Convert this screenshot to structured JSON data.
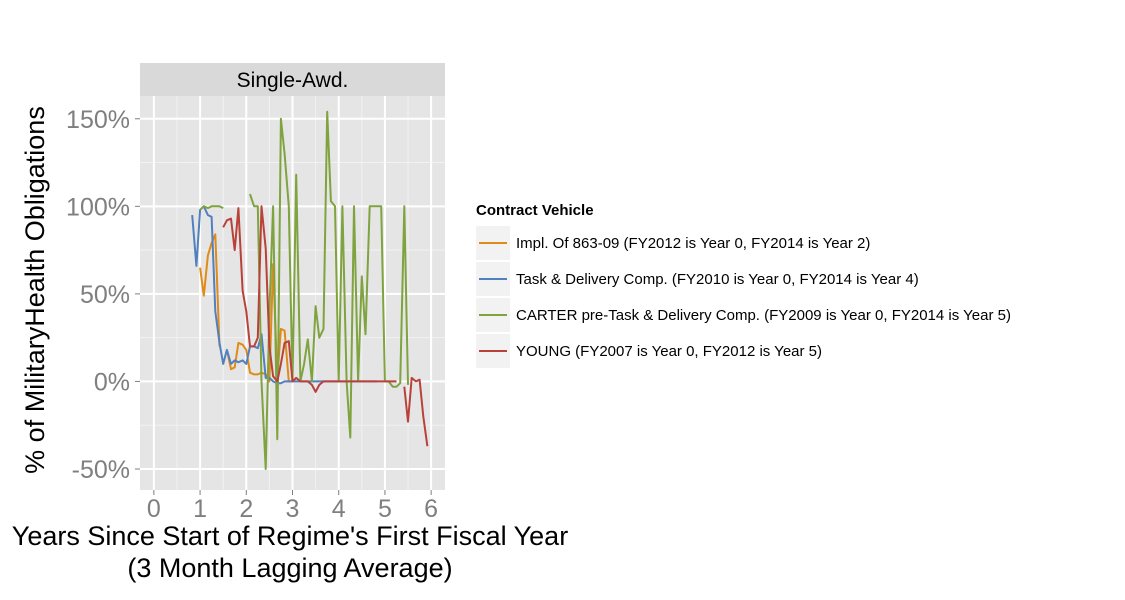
{
  "chart_data": {
    "type": "line",
    "facet_label": "Single-Awd.",
    "xlabel": "Years Since Start of Regime's First Fiscal Year\n(3 Month Lagging Average)",
    "ylabel": "% of MilitaryHealth Obligations",
    "xlim": [
      -0.3,
      6.3
    ],
    "ylim": [
      -0.62,
      1.63
    ],
    "x_ticks": [
      0,
      1,
      2,
      3,
      4,
      5,
      6
    ],
    "y_ticks": [
      -0.5,
      0,
      0.5,
      1.0,
      1.5
    ],
    "y_tick_labels": [
      "-50%",
      "0%",
      "50%",
      "100%",
      "150%"
    ],
    "grid": true,
    "legend_position": "right",
    "legend_title": "Contract Vehicle",
    "series": [
      {
        "name": "Impl. Of 863-09 (FY2012 is Year 0, FY2014 is Year 2)",
        "color": "#e08a17",
        "x": [
          1.0,
          1.08,
          1.17,
          1.25,
          1.33,
          1.42,
          1.5,
          1.58,
          1.67,
          1.75,
          1.83,
          1.92,
          2.0,
          2.08,
          2.17,
          2.25,
          2.33,
          2.42,
          2.5,
          2.58,
          2.67,
          2.75,
          2.83,
          2.92,
          3.0
        ],
        "y": [
          0.65,
          0.49,
          0.72,
          0.79,
          0.84,
          0.2,
          null,
          0.18,
          0.07,
          0.08,
          0.22,
          0.21,
          0.18,
          0.05,
          0.04,
          0.04,
          0.05,
          0.04,
          0.0,
          0.67,
          0.02,
          0.3,
          0.29,
          0.0,
          0.0
        ]
      },
      {
        "name": "Task & Delivery Comp. (FY2010 is Year 0, FY2014 is Year 4)",
        "color": "#5080bf",
        "x": [
          0.83,
          0.92,
          1.0,
          1.08,
          1.17,
          1.25,
          1.33,
          1.42,
          1.5,
          1.58,
          1.67,
          1.75,
          1.83,
          1.92,
          2.0,
          2.08,
          2.17,
          2.25,
          2.33,
          2.42,
          2.5,
          2.58,
          2.67,
          2.75,
          2.83,
          2.92,
          3.0,
          3.17,
          3.33,
          3.5,
          3.67,
          3.83,
          4.0,
          4.17,
          4.33,
          4.5,
          4.67,
          4.83
        ],
        "y": [
          0.95,
          0.66,
          0.98,
          1.0,
          0.95,
          0.94,
          0.4,
          0.22,
          0.1,
          0.18,
          0.1,
          0.12,
          0.11,
          0.12,
          0.1,
          0.2,
          0.2,
          0.19,
          0.27,
          0.02,
          0.02,
          0.0,
          -0.01,
          -0.01,
          0.0,
          0.0,
          0.0,
          0.0,
          0.0,
          0.0,
          0.0,
          0.0,
          0.0,
          0.0,
          0.0,
          0.0,
          0.0,
          0.0
        ]
      },
      {
        "name": "CARTER pre-Task & Delivery Comp. (FY2009 is Year 0, FY2014 is Year 5)",
        "color": "#7fa33f",
        "x": [
          1.0,
          1.08,
          1.17,
          1.25,
          1.33,
          1.42,
          1.5,
          null,
          2.08,
          2.17,
          2.25,
          2.33,
          2.42,
          2.5,
          2.58,
          2.67,
          2.75,
          2.83,
          2.92,
          3.0,
          3.08,
          3.17,
          3.25,
          3.33,
          3.42,
          3.5,
          3.58,
          3.67,
          3.75,
          3.83,
          3.92,
          4.0,
          4.08,
          4.17,
          4.25,
          4.33,
          4.42,
          4.5,
          4.58,
          4.67,
          4.75,
          4.83,
          4.92,
          5.0,
          5.08,
          5.17,
          5.25,
          5.33,
          5.42,
          5.5
        ],
        "y": [
          0.98,
          1.0,
          0.99,
          1.0,
          1.0,
          1.0,
          0.99,
          null,
          1.07,
          1.0,
          1.0,
          0.0,
          -0.5,
          0.4,
          1.0,
          -0.33,
          1.5,
          1.3,
          1.0,
          0.0,
          1.18,
          0.0,
          0.1,
          0.24,
          0.0,
          0.43,
          0.25,
          0.3,
          1.54,
          1.03,
          1.0,
          0.0,
          1.0,
          0.0,
          -0.32,
          1.0,
          0.0,
          0.6,
          0.27,
          1.0,
          1.0,
          1.0,
          1.0,
          0.0,
          0.0,
          -0.03,
          -0.03,
          -0.01,
          1.0,
          -0.02
        ]
      },
      {
        "name": "YOUNG (FY2007 is Year 0, FY2012 is Year 5)",
        "color": "#b9413a",
        "x": [
          1.5,
          1.58,
          1.67,
          1.75,
          1.83,
          1.92,
          2.0,
          2.08,
          2.17,
          2.25,
          2.33,
          2.42,
          2.5,
          2.58,
          2.67,
          2.75,
          2.83,
          2.92,
          3.0,
          3.08,
          3.17,
          3.25,
          3.33,
          3.42,
          3.5,
          3.58,
          3.67,
          3.75,
          3.83,
          3.92,
          4.0,
          4.08,
          4.17,
          4.25,
          4.33,
          4.42,
          4.5,
          4.58,
          4.67,
          4.75,
          4.83,
          4.92,
          5.0,
          5.08,
          5.17,
          5.25,
          5.33,
          5.42,
          5.5,
          5.58,
          5.67,
          5.75,
          5.83,
          5.92
        ],
        "y": [
          0.88,
          0.92,
          0.93,
          0.75,
          0.99,
          0.52,
          0.4,
          0.2,
          0.2,
          0.25,
          1.0,
          0.76,
          0.2,
          0.03,
          0.0,
          0.1,
          0.22,
          0.23,
          0.0,
          0.02,
          0.0,
          0.0,
          0.0,
          -0.02,
          -0.06,
          -0.02,
          0.0,
          0.0,
          0.0,
          0.0,
          0.0,
          0.0,
          0.0,
          0.0,
          0.0,
          0.0,
          0.0,
          0.0,
          0.0,
          0.0,
          0.0,
          0.0,
          0.0,
          0.0,
          0.0,
          0.0,
          null,
          -0.03,
          -0.23,
          0.02,
          0.0,
          0.01,
          -0.2,
          -0.37
        ]
      }
    ]
  }
}
